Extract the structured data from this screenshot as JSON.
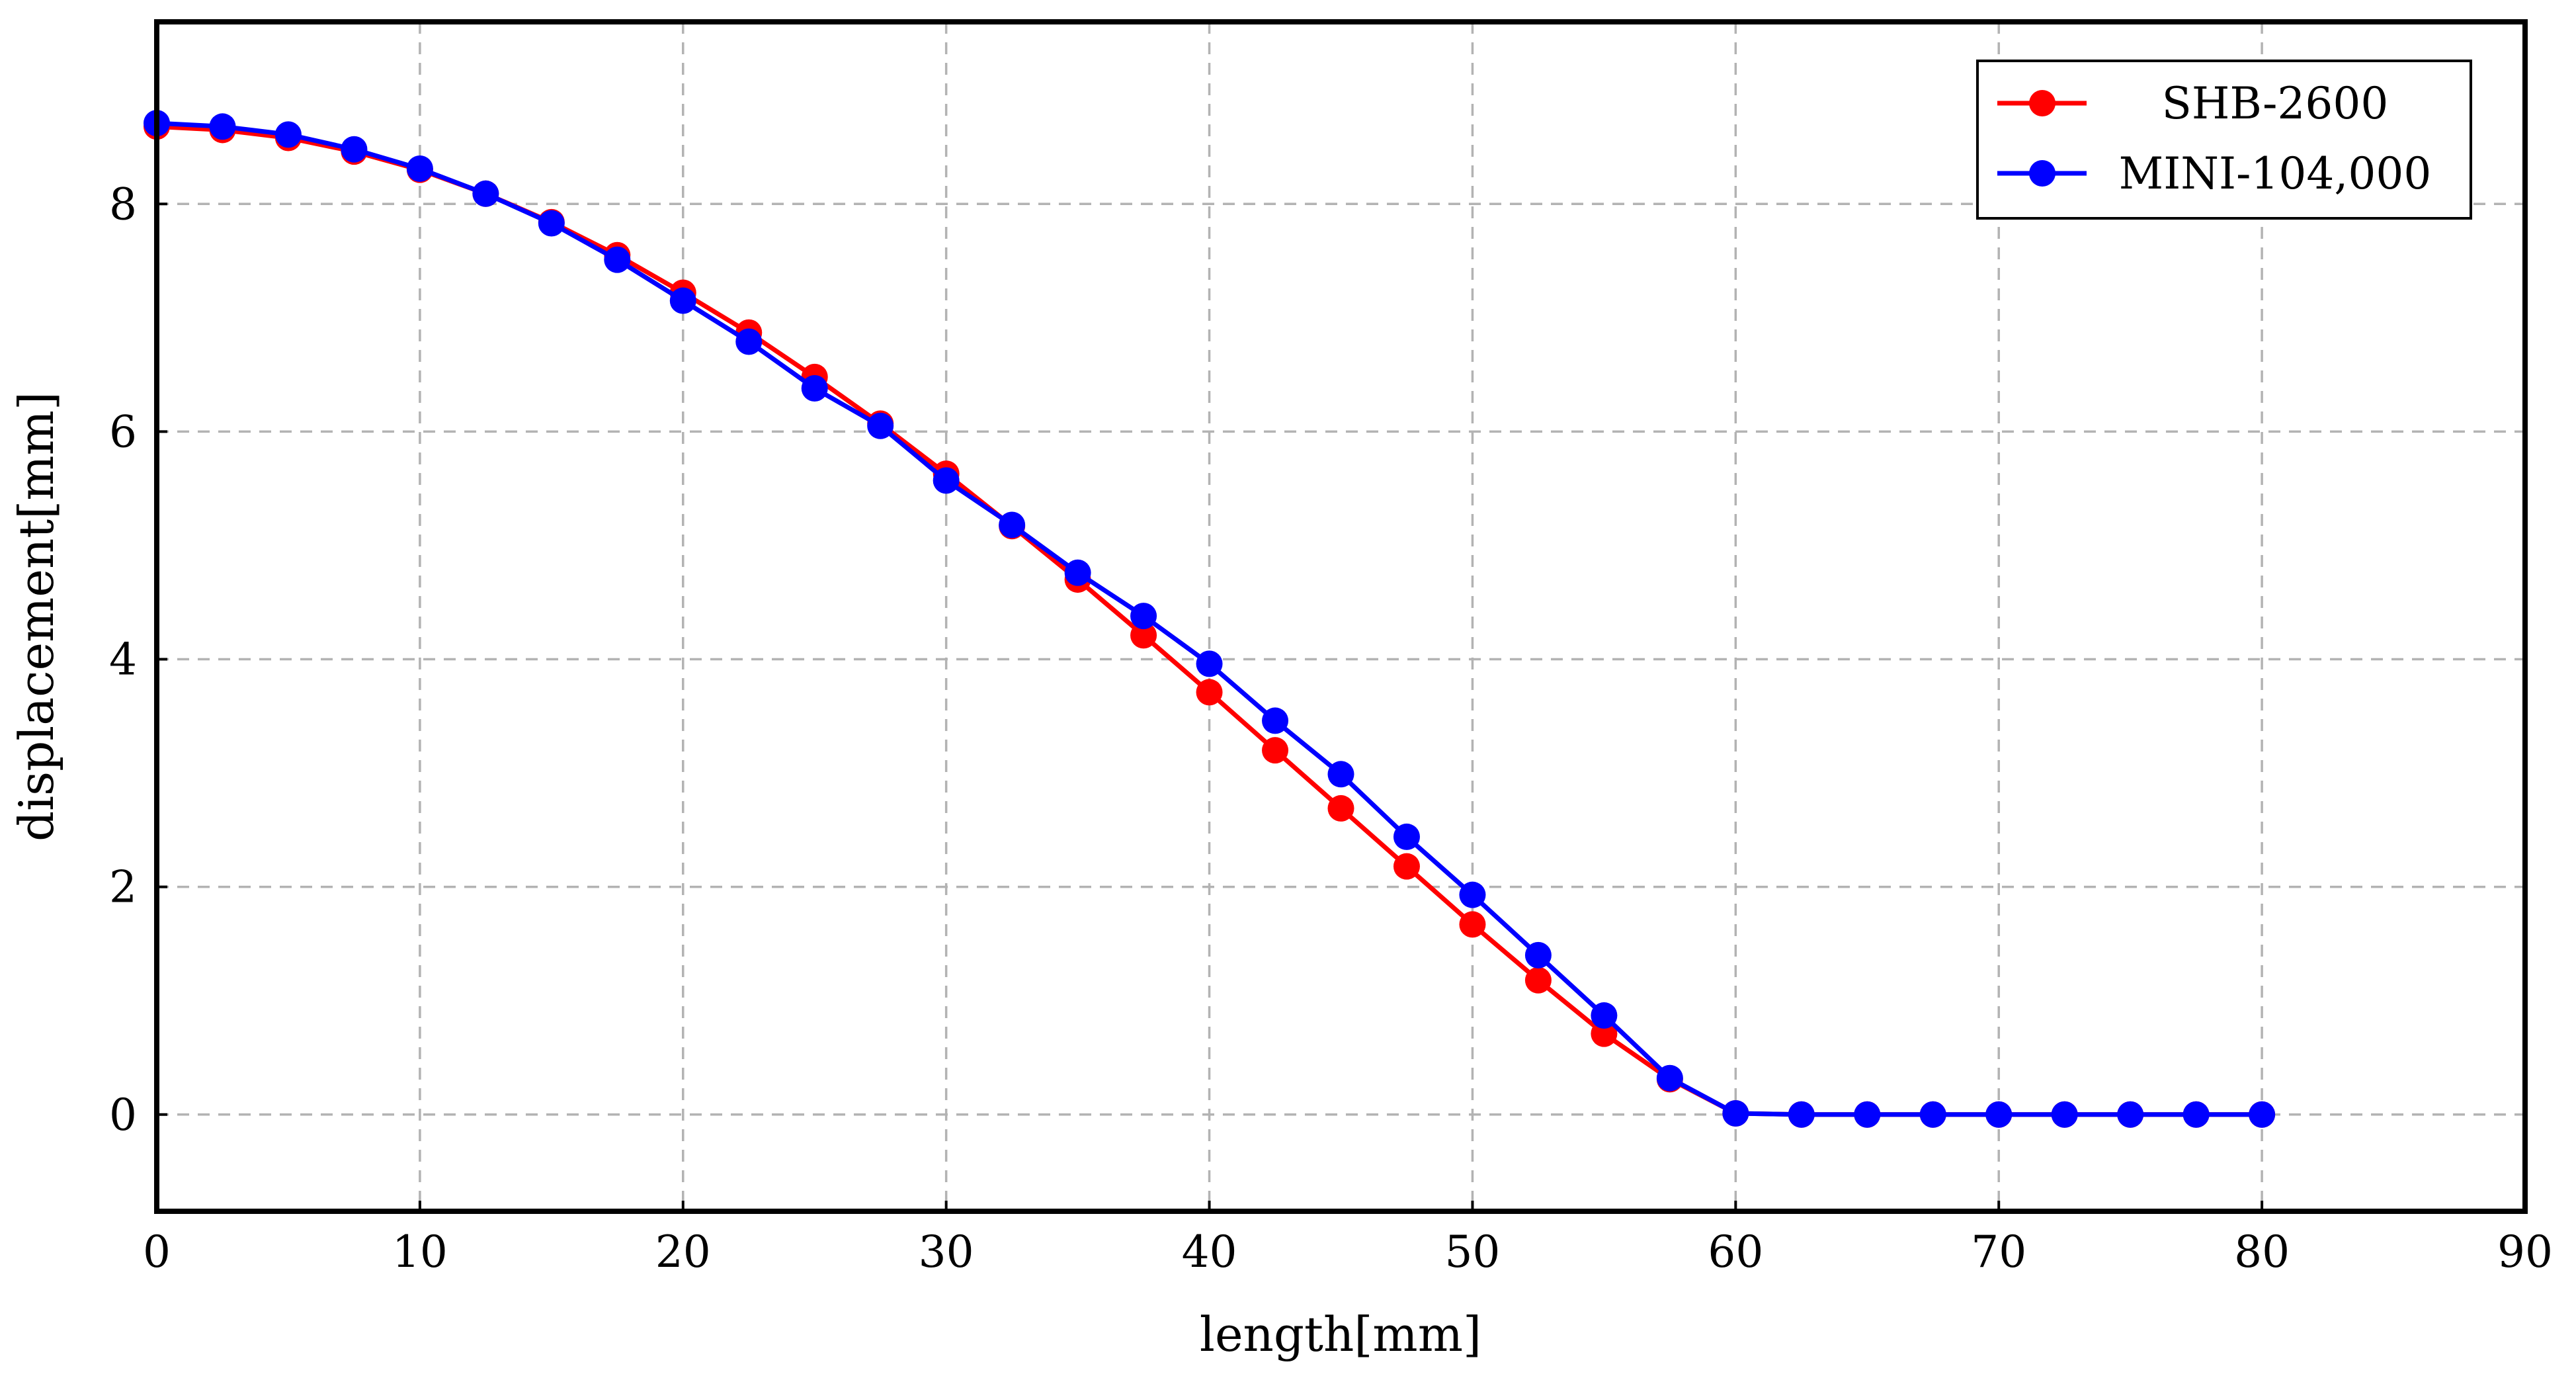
{
  "chart_data": {
    "type": "line",
    "title": "",
    "xlabel": "length[mm]",
    "ylabel": "displacement[mm]",
    "xlim": [
      0,
      90
    ],
    "ylim": [
      -0.85,
      9.6
    ],
    "xticks": [
      0,
      10,
      20,
      30,
      40,
      50,
      60,
      70,
      80,
      90
    ],
    "yticks": [
      0,
      2,
      4,
      6,
      8
    ],
    "grid": true,
    "legend_position": "top-right",
    "x": [
      0,
      2.5,
      5,
      7.5,
      10,
      12.5,
      15,
      17.5,
      20,
      22.5,
      25,
      27.5,
      30,
      32.5,
      35,
      37.5,
      40,
      42.5,
      45,
      47.5,
      50,
      52.5,
      55,
      57.5,
      60,
      62.5,
      65,
      67.5,
      70,
      72.5,
      75,
      77.5,
      80
    ],
    "series": [
      {
        "name": "SHB-2600",
        "color": "#ff0000",
        "values": [
          8.68,
          8.65,
          8.58,
          8.46,
          8.3,
          8.09,
          7.84,
          7.55,
          7.22,
          6.87,
          6.48,
          6.07,
          5.63,
          5.17,
          4.7,
          4.21,
          3.71,
          3.2,
          2.69,
          2.18,
          1.67,
          1.18,
          0.71,
          0.31,
          0.01,
          0.0,
          0.0,
          0.0,
          0.0,
          0.0,
          0.0,
          0.0,
          0.0
        ]
      },
      {
        "name": "MINI-104,000",
        "color": "#0000ff",
        "values": [
          8.71,
          8.68,
          8.61,
          8.48,
          8.31,
          8.09,
          7.83,
          7.51,
          7.15,
          6.79,
          6.38,
          6.05,
          5.57,
          5.18,
          4.76,
          4.38,
          3.96,
          3.46,
          2.99,
          2.44,
          1.93,
          1.4,
          0.87,
          0.32,
          0.01,
          0.0,
          0.0,
          0.0,
          0.0,
          0.0,
          0.0,
          0.0,
          0.0
        ]
      }
    ]
  }
}
